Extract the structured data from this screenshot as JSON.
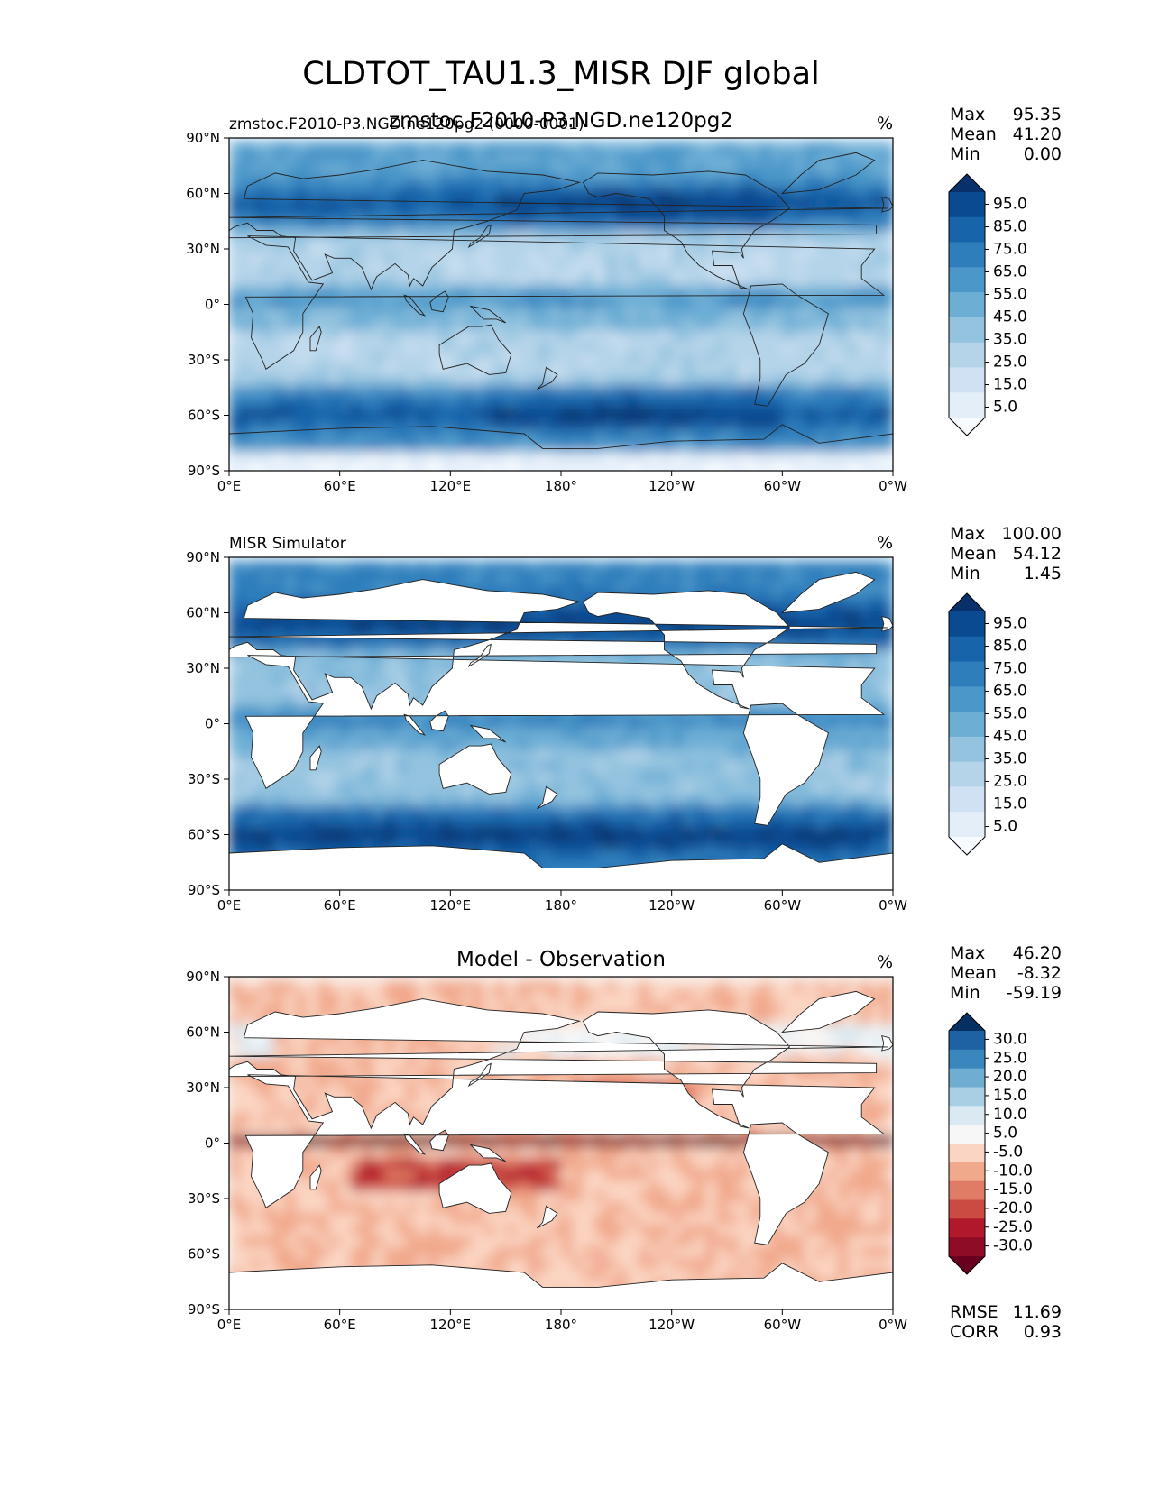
{
  "figure": {
    "title": "CLDTOT_TAU1.3_MISR DJF global",
    "overlay_subtitle": "zmstoc.F2010-P3.NGD.ne120pg2"
  },
  "axes": {
    "xticks": [
      "0°E",
      "60°E",
      "120°E",
      "180°",
      "120°W",
      "60°W",
      "0°W"
    ],
    "yticks": [
      "90°N",
      "60°N",
      "30°N",
      "0°",
      "30°S",
      "60°S",
      "90°S"
    ]
  },
  "chart_data": [
    {
      "type": "heatmap",
      "panel": "model",
      "left_title": "zmstoc.F2010-P3.NGD.ne120pg2 (0000-0001)",
      "center_title": "",
      "units": "%",
      "stats": {
        "max": "95.35",
        "mean": "41.20",
        "min": "0.00"
      },
      "colorbar_ticks": [
        "95.0",
        "85.0",
        "75.0",
        "65.0",
        "55.0",
        "45.0",
        "35.0",
        "25.0",
        "15.0",
        "5.0"
      ],
      "colormap": [
        "#f7fbff",
        "#e3eef9",
        "#cfe1f2",
        "#b5d4e9",
        "#93c3df",
        "#6daed5",
        "#4b97c9",
        "#2f7ebc",
        "#1864aa",
        "#0a4a90",
        "#08306b"
      ],
      "xlim": [
        0,
        360
      ],
      "ylim": [
        -90,
        90
      ]
    },
    {
      "type": "heatmap",
      "panel": "observation",
      "left_title": "MISR Simulator",
      "center_title": "",
      "units": "%",
      "stats": {
        "max": "100.00",
        "mean": "54.12",
        "min": "1.45"
      },
      "colorbar_ticks": [
        "95.0",
        "85.0",
        "75.0",
        "65.0",
        "55.0",
        "45.0",
        "35.0",
        "25.0",
        "15.0",
        "5.0"
      ],
      "colormap": [
        "#f7fbff",
        "#e3eef9",
        "#cfe1f2",
        "#b5d4e9",
        "#93c3df",
        "#6daed5",
        "#4b97c9",
        "#2f7ebc",
        "#1864aa",
        "#0a4a90",
        "#08306b"
      ],
      "xlim": [
        0,
        360
      ],
      "ylim": [
        -90,
        90
      ]
    },
    {
      "type": "heatmap",
      "panel": "difference",
      "left_title": "",
      "center_title": "Model - Observation",
      "units": "%",
      "stats": {
        "max": "46.20",
        "mean": "-8.32",
        "min": "-59.19"
      },
      "extra_stats": {
        "rmse": "11.69",
        "corr": "0.93"
      },
      "colorbar_ticks": [
        "30.0",
        "25.0",
        "20.0",
        "15.0",
        "10.0",
        "5.0",
        "-5.0",
        "-10.0",
        "-15.0",
        "-20.0",
        "-25.0",
        "-30.0"
      ],
      "colormap": [
        "#67001f",
        "#8e0c25",
        "#b2182b",
        "#cb4a42",
        "#e07b65",
        "#f1a98c",
        "#fbd5c3",
        "#f7f7f7",
        "#dbeaf2",
        "#a9cfe5",
        "#6faed2",
        "#3a87bd",
        "#1f62a3",
        "#053061"
      ],
      "xlim": [
        0,
        360
      ],
      "ylim": [
        -90,
        90
      ]
    }
  ],
  "stat_labels": {
    "max": "Max",
    "mean": "Mean",
    "min": "Min",
    "rmse": "RMSE",
    "corr": "CORR"
  }
}
